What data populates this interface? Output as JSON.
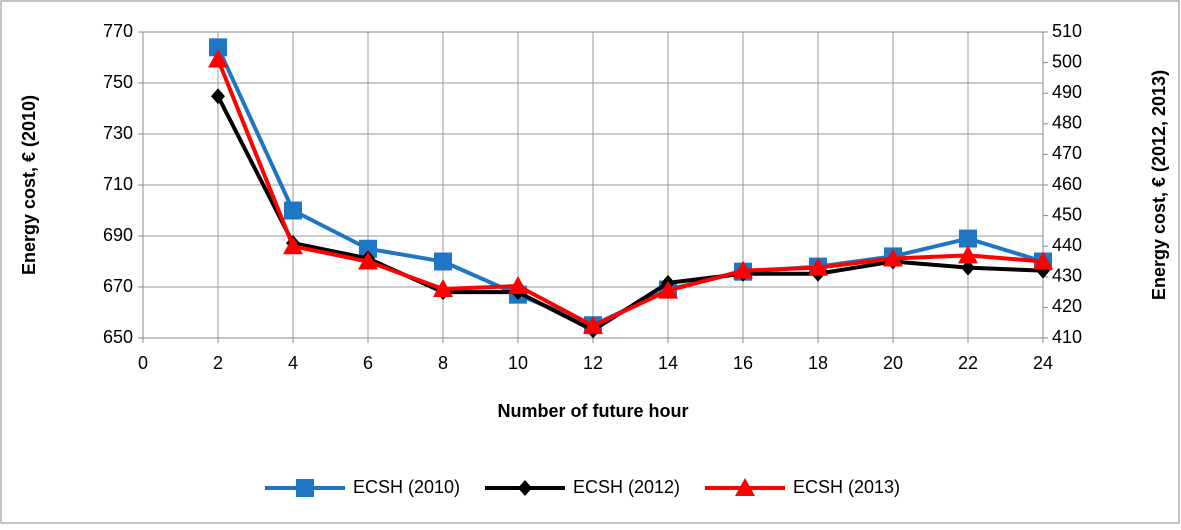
{
  "chart_data": {
    "type": "line",
    "x_label": "Number of future hour",
    "y_label": "Energy cost, € (2010)",
    "y2_label": "Energy cost, € (2012, 2013)",
    "x": [
      2,
      4,
      6,
      8,
      10,
      12,
      14,
      16,
      18,
      20,
      22,
      24
    ],
    "xlim": [
      0,
      24
    ],
    "xticks": [
      0,
      2,
      4,
      6,
      8,
      10,
      12,
      14,
      16,
      18,
      20,
      22,
      24
    ],
    "ylim": [
      650,
      770
    ],
    "yticks": [
      650,
      670,
      690,
      710,
      730,
      750,
      770
    ],
    "y2lim": [
      410,
      510
    ],
    "y2ticks": [
      410,
      420,
      430,
      440,
      450,
      460,
      470,
      480,
      490,
      500,
      510
    ],
    "grid": true,
    "legend": "bottom",
    "series": [
      {
        "name": "ECSH (2010)",
        "color": "#1f77c4",
        "marker": "square",
        "axis": "y",
        "values": [
          764,
          700,
          685,
          680,
          667,
          655,
          669,
          676,
          678,
          682,
          689,
          680
        ]
      },
      {
        "name": "ECSH (2012)",
        "color": "#000000",
        "marker": "diamond",
        "axis": "y2",
        "values": [
          489,
          441,
          436,
          425,
          425,
          412.5,
          428,
          431,
          431,
          435,
          433,
          432
        ]
      },
      {
        "name": "ECSH (2013)",
        "color": "#ff0000",
        "marker": "triangle",
        "axis": "y2",
        "values": [
          501,
          440,
          435,
          426,
          427,
          414,
          425.5,
          432,
          433,
          436,
          437,
          435
        ]
      }
    ]
  }
}
